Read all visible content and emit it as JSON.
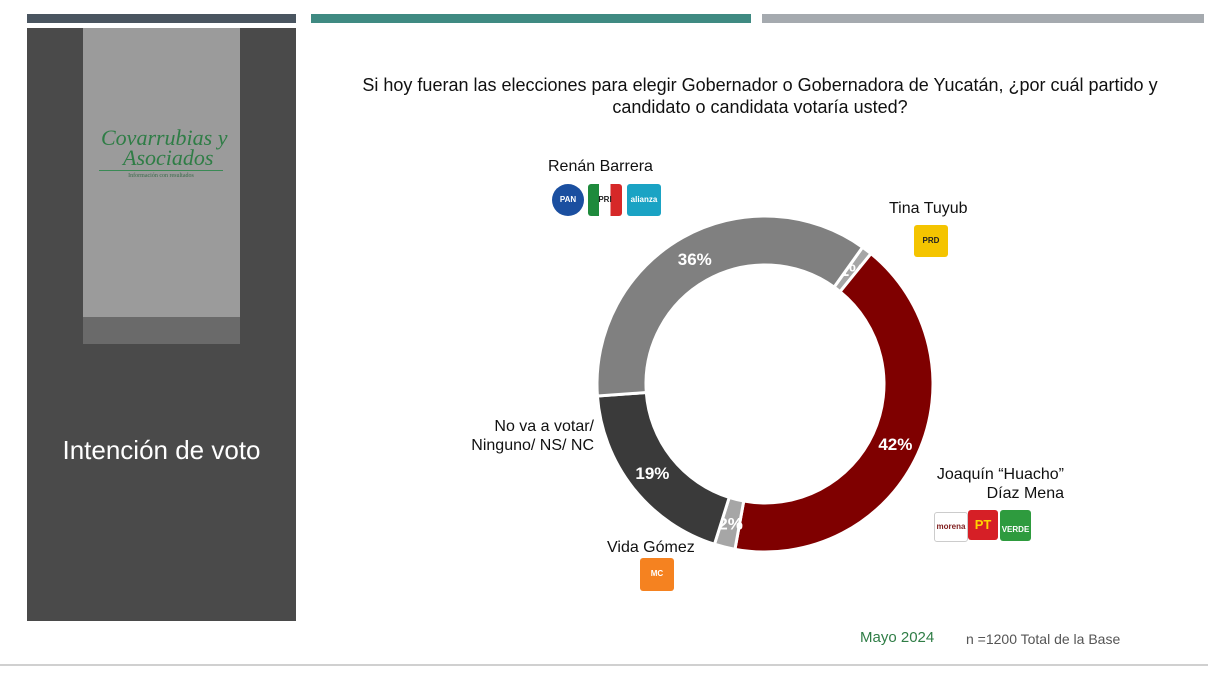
{
  "header": {
    "bar_colors": [
      "#4a5560",
      "#3f8a82",
      "#a5aaaf"
    ]
  },
  "sidebar": {
    "logo_line1": "Covarrubias y",
    "logo_line2": "Asociados",
    "logo_tagline": "Información con resultados",
    "title": "Intención de voto"
  },
  "footer": {
    "date": "Mayo 2024",
    "sample": "n =1200 Total de la Base"
  },
  "chart_data": {
    "type": "pie",
    "variant": "donut",
    "title": "Si hoy fueran las elecciones para elegir Gobernador o Gobernadora de Yucatán, ¿por cuál partido y candidato o candidata votaría usted?",
    "slices": [
      {
        "label": "Tina Tuyub",
        "value": 1,
        "value_label": "1%",
        "color": "#a6a6a6",
        "parties": [
          "PRD"
        ]
      },
      {
        "label": "Joaquín “Huacho” Díaz Mena",
        "value": 42,
        "value_label": "42%",
        "color": "#7f0000",
        "parties": [
          "morena",
          "PT",
          "VERDE"
        ]
      },
      {
        "label": "Vida Gómez",
        "value": 2,
        "value_label": "2%",
        "color": "#a6a6a6",
        "parties": [
          "MC"
        ]
      },
      {
        "label": "No va a votar/ Ninguno/ NS/ NC",
        "value": 19,
        "value_label": "19%",
        "color": "#3a3a3a",
        "parties": []
      },
      {
        "label": "Renán Barrera",
        "value": 36,
        "value_label": "36%",
        "color": "#808080",
        "parties": [
          "PAN",
          "PRI",
          "alianza"
        ]
      }
    ]
  }
}
